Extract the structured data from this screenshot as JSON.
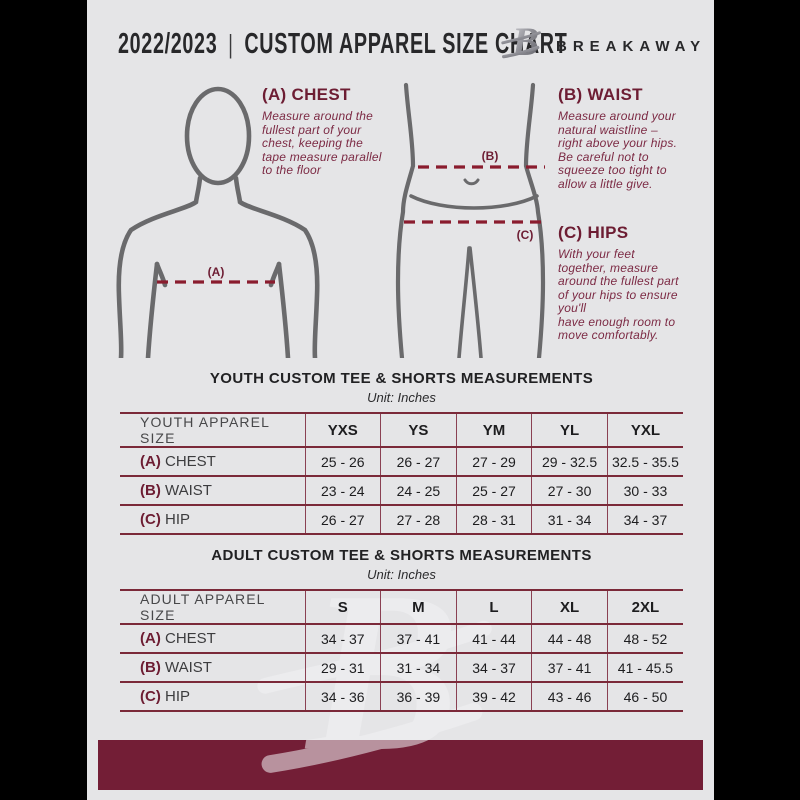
{
  "header": {
    "year": "2022/2023",
    "separator": "|",
    "title": "CUSTOM APPAREL SIZE CHART",
    "brand": "BREAKAWAY"
  },
  "colors": {
    "page_bg": "#e5e5e7",
    "burgundy_bar": "#731e36",
    "maroon_text": "#6d1d33",
    "dash_red": "#8a1c2e",
    "figure_gray": "#6a6a6c"
  },
  "guide": {
    "labels": {
      "chest": "(A)",
      "waist": "(B)",
      "hip": "(C)"
    },
    "chest": {
      "heading": "(A) CHEST",
      "body": "Measure around the\nfullest part of your\nchest, keeping the\ntape measure parallel\nto the floor"
    },
    "waist": {
      "heading": "(B) WAIST",
      "body": "Measure around your\nnatural waistline –\nright above your hips.\nBe careful not to\nsqueeze too tight to\nallow a little give."
    },
    "hips": {
      "heading": "(C) HIPS",
      "body": "With your feet\ntogether, measure\naround the fullest part\nof your hips to ensure\nyou'll\nhave enough room to\nmove comfortably."
    }
  },
  "youth_table": {
    "title": "YOUTH CUSTOM TEE & SHORTS MEASUREMENTS",
    "unit": "Unit: Inches",
    "header_label": "YOUTH APPAREL SIZE",
    "sizes": [
      "YXS",
      "YS",
      "YM",
      "YL",
      "YXL"
    ],
    "rows": [
      {
        "prefix": "(A)",
        "label": "CHEST",
        "values": [
          "25 - 26",
          "26 - 27",
          "27 - 29",
          "29 - 32.5",
          "32.5 - 35.5"
        ]
      },
      {
        "prefix": "(B)",
        "label": "WAIST",
        "values": [
          "23 - 24",
          "24 - 25",
          "25 - 27",
          "27 - 30",
          "30 - 33"
        ]
      },
      {
        "prefix": "(C)",
        "label": "HIP",
        "values": [
          "26 - 27",
          "27 - 28",
          "28 - 31",
          "31 - 34",
          "34 - 37"
        ]
      }
    ]
  },
  "adult_table": {
    "title": "ADULT CUSTOM TEE & SHORTS MEASUREMENTS",
    "unit": "Unit: Inches",
    "header_label": "ADULT APPAREL SIZE",
    "sizes": [
      "S",
      "M",
      "L",
      "XL",
      "2XL"
    ],
    "rows": [
      {
        "prefix": "(A)",
        "label": "CHEST",
        "values": [
          "34 - 37",
          "37 - 41",
          "41 - 44",
          "44 - 48",
          "48 - 52"
        ]
      },
      {
        "prefix": "(B)",
        "label": "WAIST",
        "values": [
          "29 - 31",
          "31 - 34",
          "34 - 37",
          "37 - 41",
          "41 - 45.5"
        ]
      },
      {
        "prefix": "(C)",
        "label": "HIP",
        "values": [
          "34 - 36",
          "36 - 39",
          "39 - 42",
          "43 - 46",
          "46 - 50"
        ]
      }
    ]
  }
}
